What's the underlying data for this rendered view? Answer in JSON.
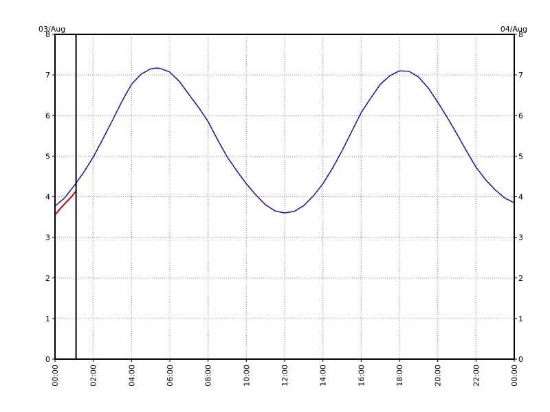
{
  "chart_data": {
    "type": "line",
    "title": "",
    "xlabel": "",
    "ylabel": "",
    "date_start_label": "03/Aug",
    "date_end_label": "04/Aug",
    "x_tick_labels": [
      "00:00",
      "02:00",
      "04:00",
      "06:00",
      "08:00",
      "10:00",
      "12:00",
      "14:00",
      "16:00",
      "18:00",
      "20:00",
      "22:00",
      "00:00"
    ],
    "y_tick_labels": [
      "0",
      "1",
      "2",
      "3",
      "4",
      "5",
      "6",
      "7",
      "8"
    ],
    "xlim_hours": [
      0,
      24
    ],
    "ylim": [
      0,
      8
    ],
    "grid": true,
    "now_marker_hour": 1.1,
    "series": [
      {
        "color": "#0000aa",
        "style": "dotted",
        "points": [
          [
            0.0,
            3.77
          ],
          [
            0.5,
            3.97
          ],
          [
            1.0,
            4.27
          ],
          [
            1.5,
            4.6
          ],
          [
            2.0,
            4.98
          ],
          [
            2.5,
            5.42
          ],
          [
            3.0,
            5.88
          ],
          [
            3.5,
            6.35
          ],
          [
            4.0,
            6.77
          ],
          [
            4.5,
            7.02
          ],
          [
            5.0,
            7.15
          ],
          [
            5.3,
            7.17
          ],
          [
            5.5,
            7.16
          ],
          [
            6.0,
            7.07
          ],
          [
            6.5,
            6.84
          ],
          [
            7.0,
            6.52
          ],
          [
            7.5,
            6.2
          ],
          [
            8.0,
            5.85
          ],
          [
            8.5,
            5.4
          ],
          [
            9.0,
            4.98
          ],
          [
            9.5,
            4.64
          ],
          [
            10.0,
            4.32
          ],
          [
            10.5,
            4.04
          ],
          [
            11.0,
            3.8
          ],
          [
            11.5,
            3.65
          ],
          [
            12.0,
            3.6
          ],
          [
            12.5,
            3.64
          ],
          [
            13.0,
            3.78
          ],
          [
            13.5,
            4.02
          ],
          [
            14.0,
            4.32
          ],
          [
            14.5,
            4.7
          ],
          [
            15.0,
            5.13
          ],
          [
            15.5,
            5.6
          ],
          [
            16.0,
            6.07
          ],
          [
            16.5,
            6.43
          ],
          [
            17.0,
            6.77
          ],
          [
            17.5,
            6.98
          ],
          [
            18.0,
            7.1
          ],
          [
            18.5,
            7.09
          ],
          [
            19.0,
            6.95
          ],
          [
            19.5,
            6.68
          ],
          [
            20.0,
            6.33
          ],
          [
            20.5,
            5.95
          ],
          [
            21.0,
            5.55
          ],
          [
            21.5,
            5.13
          ],
          [
            22.0,
            4.73
          ],
          [
            22.5,
            4.42
          ],
          [
            23.0,
            4.17
          ],
          [
            23.5,
            3.97
          ],
          [
            24.0,
            3.85
          ]
        ]
      },
      {
        "color": "#cc0000",
        "style": "solid",
        "points": [
          [
            0.0,
            3.55
          ],
          [
            0.3,
            3.72
          ],
          [
            0.6,
            3.87
          ],
          [
            0.9,
            4.02
          ],
          [
            1.1,
            4.14
          ]
        ]
      }
    ]
  }
}
